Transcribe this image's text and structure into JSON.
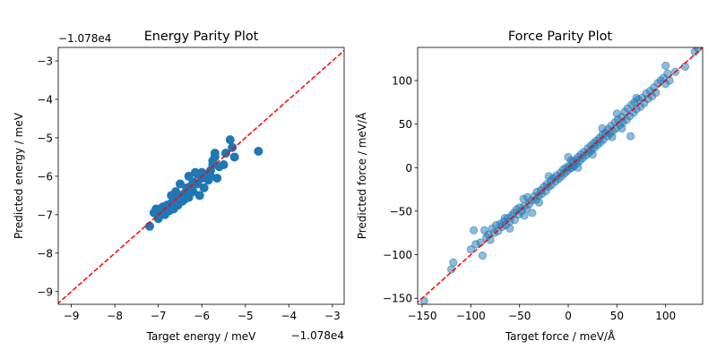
{
  "chart_data": [
    {
      "type": "scatter",
      "title": "Energy Parity Plot",
      "xlabel": "Target energy / meV",
      "ylabel": "Predicted energy / meV",
      "x_offset_text": "−1.078e4",
      "y_offset_text": "−1.078e4",
      "xlim": [
        -9.3,
        -2.73
      ],
      "ylim": [
        -9.33,
        -2.65
      ],
      "xticks": [
        -9,
        -8,
        -7,
        -6,
        -5,
        -4,
        -3
      ],
      "yticks": [
        -9,
        -8,
        -7,
        -6,
        -5,
        -4,
        -3
      ],
      "grid": false,
      "point_color": "#1f77b4",
      "line_color": "#ff0000",
      "points": [
        [
          -7.2,
          -7.3
        ],
        [
          -7.1,
          -6.95
        ],
        [
          -7.0,
          -7.1
        ],
        [
          -6.95,
          -6.9
        ],
        [
          -6.9,
          -6.8
        ],
        [
          -6.85,
          -7.0
        ],
        [
          -6.8,
          -6.75
        ],
        [
          -6.75,
          -6.9
        ],
        [
          -6.7,
          -6.7
        ],
        [
          -6.65,
          -6.85
        ],
        [
          -6.6,
          -6.6
        ],
        [
          -6.55,
          -6.75
        ],
        [
          -6.5,
          -6.5
        ],
        [
          -6.5,
          -6.2
        ],
        [
          -6.45,
          -6.65
        ],
        [
          -6.4,
          -6.45
        ],
        [
          -6.35,
          -6.3
        ],
        [
          -6.3,
          -6.55
        ],
        [
          -6.25,
          -6.25
        ],
        [
          -6.2,
          -6.4
        ],
        [
          -6.15,
          -5.9
        ],
        [
          -6.1,
          -6.2
        ],
        [
          -6.05,
          -6.5
        ],
        [
          -6.0,
          -6.05
        ],
        [
          -5.95,
          -6.3
        ],
        [
          -5.9,
          -5.95
        ],
        [
          -5.85,
          -6.1
        ],
        [
          -5.8,
          -5.85
        ],
        [
          -5.75,
          -5.7
        ],
        [
          -5.7,
          -5.5
        ],
        [
          -5.7,
          -5.4
        ],
        [
          -5.65,
          -6.05
        ],
        [
          -5.6,
          -5.75
        ],
        [
          -5.45,
          -5.4
        ],
        [
          -5.35,
          -5.05
        ],
        [
          -5.3,
          -5.25
        ],
        [
          -5.25,
          -5.5
        ],
        [
          -4.7,
          -5.35
        ],
        [
          -6.3,
          -6.0
        ],
        [
          -6.6,
          -6.4
        ],
        [
          -6.9,
          -6.95
        ],
        [
          -7.05,
          -6.85
        ],
        [
          -6.0,
          -5.9
        ],
        [
          -5.8,
          -6.0
        ],
        [
          -6.2,
          -6.15
        ],
        [
          -6.4,
          -6.6
        ],
        [
          -5.5,
          -5.7
        ],
        [
          -5.75,
          -5.6
        ],
        [
          -6.1,
          -5.95
        ],
        [
          -6.7,
          -6.5
        ]
      ]
    },
    {
      "type": "scatter",
      "title": "Force Parity Plot",
      "xlabel": "Target force / meV/Å",
      "ylabel": "Predicted force / meV/Å",
      "xlim": [
        -154.6,
        138
      ],
      "ylim": [
        -157,
        138
      ],
      "xticks": [
        -150,
        -100,
        -50,
        0,
        50,
        100
      ],
      "yticks": [
        -150,
        -100,
        -50,
        0,
        50,
        100
      ],
      "grid": false,
      "point_color": "#1f77b4",
      "point_alpha": 0.5,
      "line_color": "#ff0000",
      "points": [
        [
          -148,
          -153
        ],
        [
          -120,
          -117
        ],
        [
          -118,
          -109
        ],
        [
          -100,
          -94
        ],
        [
          -97,
          -72
        ],
        [
          -95,
          -88
        ],
        [
          -90,
          -86
        ],
        [
          -88,
          -101
        ],
        [
          -86,
          -72
        ],
        [
          -84,
          -80
        ],
        [
          -82,
          -77
        ],
        [
          -80,
          -83
        ],
        [
          -78,
          -70
        ],
        [
          -76,
          -75
        ],
        [
          -74,
          -66
        ],
        [
          -72,
          -73
        ],
        [
          -70,
          -65
        ],
        [
          -68,
          -68
        ],
        [
          -66,
          -62
        ],
        [
          -64,
          -66
        ],
        [
          -62,
          -58
        ],
        [
          -60,
          -62
        ],
        [
          -58,
          -55
        ],
        [
          -56,
          -52
        ],
        [
          -55,
          -60
        ],
        [
          -53,
          -48
        ],
        [
          -51,
          -54
        ],
        [
          -50,
          -46
        ],
        [
          -48,
          -50
        ],
        [
          -46,
          -36
        ],
        [
          -45,
          -44
        ],
        [
          -43,
          -47
        ],
        [
          -42,
          -34
        ],
        [
          -40,
          -42
        ],
        [
          -38,
          -38
        ],
        [
          -37,
          -52
        ],
        [
          -35,
          -33
        ],
        [
          -33,
          -37
        ],
        [
          -32,
          -28
        ],
        [
          -30,
          -32
        ],
        [
          -28,
          -26
        ],
        [
          -27,
          -30
        ],
        [
          -25,
          -22
        ],
        [
          -23,
          -27
        ],
        [
          -22,
          -19
        ],
        [
          -20,
          -22
        ],
        [
          -18,
          -15
        ],
        [
          -17,
          -20
        ],
        [
          -15,
          -12
        ],
        [
          -13,
          -16
        ],
        [
          -12,
          -9
        ],
        [
          -10,
          -13
        ],
        [
          -8,
          -6
        ],
        [
          -7,
          -10
        ],
        [
          -5,
          -2
        ],
        [
          -4,
          -7
        ],
        [
          -2,
          0
        ],
        [
          -1,
          -4
        ],
        [
          0,
          12
        ],
        [
          1,
          2
        ],
        [
          2,
          -1
        ],
        [
          3,
          8
        ],
        [
          4,
          0
        ],
        [
          5,
          6
        ],
        [
          6,
          2
        ],
        [
          8,
          9
        ],
        [
          9,
          5
        ],
        [
          10,
          12
        ],
        [
          12,
          8
        ],
        [
          13,
          15
        ],
        [
          15,
          11
        ],
        [
          16,
          18
        ],
        [
          18,
          14
        ],
        [
          20,
          22
        ],
        [
          21,
          17
        ],
        [
          23,
          25
        ],
        [
          24,
          20
        ],
        [
          26,
          28
        ],
        [
          27,
          23
        ],
        [
          29,
          31
        ],
        [
          30,
          26
        ],
        [
          32,
          34
        ],
        [
          33,
          29
        ],
        [
          35,
          38
        ],
        [
          36,
          32
        ],
        [
          38,
          40
        ],
        [
          40,
          36
        ],
        [
          41,
          44
        ],
        [
          43,
          39
        ],
        [
          44,
          48
        ],
        [
          46,
          42
        ],
        [
          48,
          52
        ],
        [
          49,
          45
        ],
        [
          50,
          62
        ],
        [
          51,
          55
        ],
        [
          53,
          49
        ],
        [
          55,
          58
        ],
        [
          56,
          52
        ],
        [
          58,
          64
        ],
        [
          60,
          55
        ],
        [
          61,
          68
        ],
        [
          63,
          59
        ],
        [
          64,
          36
        ],
        [
          65,
          72
        ],
        [
          67,
          63
        ],
        [
          68,
          75
        ],
        [
          70,
          67
        ],
        [
          72,
          78
        ],
        [
          74,
          70
        ],
        [
          76,
          80
        ],
        [
          78,
          74
        ],
        [
          80,
          85
        ],
        [
          82,
          79
        ],
        [
          84,
          88
        ],
        [
          86,
          82
        ],
        [
          88,
          92
        ],
        [
          90,
          86
        ],
        [
          92,
          97
        ],
        [
          95,
          100
        ],
        [
          98,
          103
        ],
        [
          100,
          117
        ],
        [
          100,
          96
        ],
        [
          102,
          108
        ],
        [
          104,
          100
        ],
        [
          110,
          110
        ],
        [
          120,
          116
        ],
        [
          130,
          133
        ],
        [
          133,
          137
        ],
        [
          -60,
          -70
        ],
        [
          -65,
          -58
        ],
        [
          -45,
          -55
        ],
        [
          -30,
          -40
        ],
        [
          -20,
          -10
        ],
        [
          10,
          0
        ],
        [
          25,
          15
        ],
        [
          35,
          45
        ],
        [
          45,
          35
        ],
        [
          55,
          45
        ],
        [
          70,
          80
        ]
      ]
    }
  ]
}
